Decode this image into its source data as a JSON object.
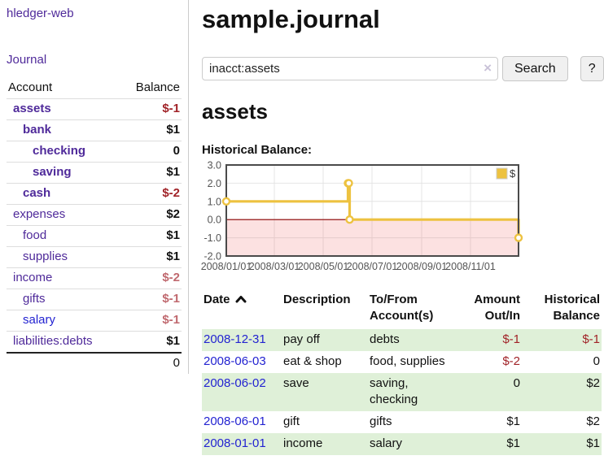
{
  "app": {
    "brand": "hledger-web"
  },
  "nav": {
    "journal": "Journal"
  },
  "sidebar": {
    "header": {
      "account": "Account",
      "balance": "Balance"
    },
    "accounts": [
      {
        "name": "assets",
        "depth": 1,
        "balance": "$-1",
        "bold": true,
        "balance_tone": "neg-strong"
      },
      {
        "name": "bank",
        "depth": 2,
        "balance": "$1",
        "bold": true,
        "balance_tone": ""
      },
      {
        "name": "checking",
        "depth": 3,
        "balance": "0",
        "bold": true,
        "balance_tone": ""
      },
      {
        "name": "saving",
        "depth": 3,
        "balance": "$1",
        "bold": true,
        "balance_tone": ""
      },
      {
        "name": "cash",
        "depth": 2,
        "balance": "$-2",
        "bold": true,
        "balance_tone": "neg-strong"
      },
      {
        "name": "expenses",
        "depth": 1,
        "balance": "$2",
        "bold": false,
        "balance_tone": ""
      },
      {
        "name": "food",
        "depth": 2,
        "balance": "$1",
        "bold": false,
        "balance_tone": ""
      },
      {
        "name": "supplies",
        "depth": 2,
        "balance": "$1",
        "bold": false,
        "balance_tone": ""
      },
      {
        "name": "income",
        "depth": 1,
        "balance": "$-2",
        "bold": false,
        "balance_tone": "neg-soft"
      },
      {
        "name": "gifts",
        "depth": 2,
        "balance": "$-1",
        "bold": false,
        "balance_tone": "neg-soft"
      },
      {
        "name": "salary",
        "depth": 2,
        "balance": "$-1",
        "bold": false,
        "balance_tone": "neg-soft",
        "name_tone": "blue"
      },
      {
        "name": "liabilities:debts",
        "depth": 1,
        "balance": "$1",
        "bold": false,
        "balance_tone": ""
      }
    ],
    "total": "0"
  },
  "header": {
    "title": "sample.journal"
  },
  "search": {
    "value": "inacct:assets",
    "clear_icon": "×",
    "button": "Search",
    "help": "?"
  },
  "account_page": {
    "heading": "assets",
    "chart_label": "Historical Balance:"
  },
  "chart_data": {
    "type": "line",
    "title": "Historical Balance",
    "xlim": [
      "2008-01-01",
      "2008-12-31"
    ],
    "ylim": [
      -2,
      3
    ],
    "x_ticks": [
      "2008/01/01",
      "2008/03/01",
      "2008/05/01",
      "2008/07/01",
      "2008/09/01",
      "2008/11/01"
    ],
    "y_ticks": [
      "3.0",
      "2.0",
      "1.0",
      "0.0",
      "-1.0",
      "-2.0"
    ],
    "grid": true,
    "legend": {
      "label": "$",
      "position": "top-right"
    },
    "series": [
      {
        "name": "$",
        "color": "#edc240",
        "step": true,
        "points": [
          [
            "2008-01-01",
            1
          ],
          [
            "2008-06-01",
            2
          ],
          [
            "2008-06-02",
            2
          ],
          [
            "2008-06-03",
            0
          ],
          [
            "2008-12-31",
            -1
          ]
        ]
      }
    ],
    "negative_region": {
      "from": 0,
      "to": -2,
      "fill": "rgba(239,90,90,0.18)",
      "line_color": "#8b0000"
    }
  },
  "register": {
    "columns": [
      {
        "label": "Date",
        "sorted": "asc",
        "align": "left"
      },
      {
        "label": "Description",
        "align": "left"
      },
      {
        "label": "To/From\nAccount(s)",
        "align": "left"
      },
      {
        "label": "Amount\nOut/In",
        "align": "right"
      },
      {
        "label": "Historical\nBalance",
        "align": "right"
      }
    ],
    "rows": [
      {
        "date": "2008-12-31",
        "description": "pay off",
        "tofrom": "debts",
        "amount": "$-1",
        "balance": "$-1"
      },
      {
        "date": "2008-06-03",
        "description": "eat & shop",
        "tofrom": "food, supplies",
        "amount": "$-2",
        "balance": "0"
      },
      {
        "date": "2008-06-02",
        "description": "save",
        "tofrom": "saving, checking",
        "amount": "0",
        "balance": "$2"
      },
      {
        "date": "2008-06-01",
        "description": "gift",
        "tofrom": "gifts",
        "amount": "$1",
        "balance": "$2"
      },
      {
        "date": "2008-01-01",
        "description": "income",
        "tofrom": "salary",
        "amount": "$1",
        "balance": "$1"
      }
    ]
  }
}
